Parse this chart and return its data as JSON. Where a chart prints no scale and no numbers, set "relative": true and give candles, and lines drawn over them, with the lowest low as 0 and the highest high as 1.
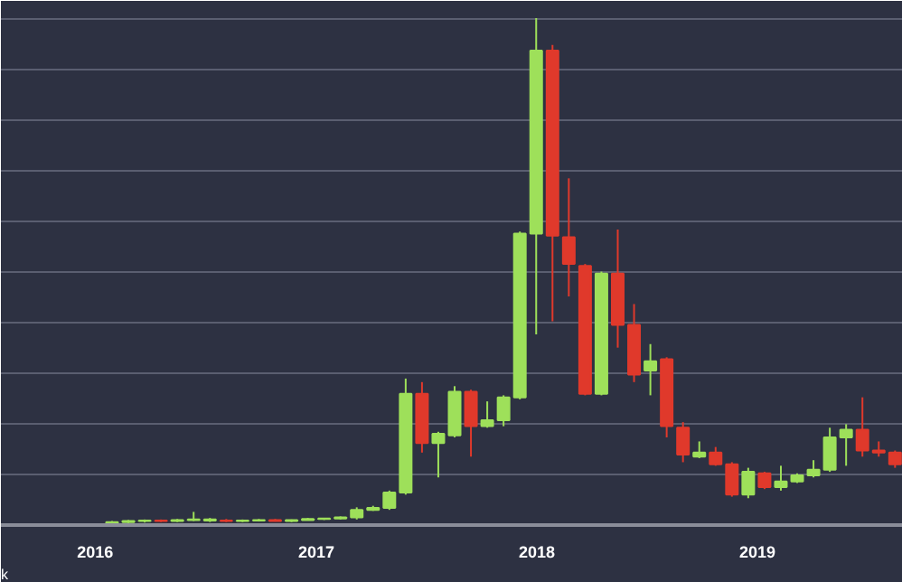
{
  "chart_data": {
    "type": "candlestick",
    "relative": true,
    "grid": "y",
    "tick_labels": "x",
    "x": [
      "2016-01-29",
      "2016-02-25",
      "2016-03-23",
      "2016-04-19",
      "2016-05-16",
      "2016-06-12",
      "2016-07-09",
      "2016-08-05",
      "2016-09-01",
      "2016-09-28",
      "2016-10-25",
      "2016-11-21",
      "2016-12-18",
      "2017-01-14",
      "2017-02-10",
      "2017-03-09",
      "2017-04-05",
      "2017-05-02",
      "2017-05-29",
      "2017-06-25",
      "2017-07-22",
      "2017-08-18",
      "2017-09-14",
      "2017-10-11",
      "2017-11-07",
      "2017-12-04",
      "2017-12-31",
      "2018-01-27",
      "2018-02-23",
      "2018-03-22",
      "2018-04-18",
      "2018-05-15",
      "2018-06-11",
      "2018-07-08",
      "2018-08-04",
      "2018-08-31",
      "2018-09-27",
      "2018-10-24",
      "2018-11-20",
      "2018-12-17",
      "2019-01-13",
      "2019-02-09",
      "2019-03-08",
      "2019-04-04",
      "2019-05-01",
      "2019-05-28",
      "2019-06-24",
      "2019-07-21",
      "2019-08-17"
    ],
    "ohlc": [
      [
        0.004,
        0.008,
        0,
        0.006
      ],
      [
        0.006,
        0.01,
        0.004,
        0.008
      ],
      [
        0.008,
        0.011,
        0.005,
        0.009
      ],
      [
        0.009,
        0.011,
        0.006,
        0.008
      ],
      [
        0.008,
        0.012,
        0.006,
        0.01
      ],
      [
        0.01,
        0.026,
        0.008,
        0.011
      ],
      [
        0.011,
        0.014,
        0.006,
        0.009
      ],
      [
        0.009,
        0.012,
        0.006,
        0.008
      ],
      [
        0.008,
        0.011,
        0.006,
        0.009
      ],
      [
        0.009,
        0.012,
        0.007,
        0.01
      ],
      [
        0.01,
        0.012,
        0.007,
        0.008
      ],
      [
        0.008,
        0.011,
        0.006,
        0.01
      ],
      [
        0.01,
        0.014,
        0.009,
        0.012
      ],
      [
        0.012,
        0.014,
        0.01,
        0.013
      ],
      [
        0.013,
        0.017,
        0.011,
        0.015
      ],
      [
        0.015,
        0.035,
        0.011,
        0.03
      ],
      [
        0.03,
        0.038,
        0.028,
        0.034
      ],
      [
        0.034,
        0.068,
        0.03,
        0.064
      ],
      [
        0.064,
        0.289,
        0.06,
        0.259
      ],
      [
        0.259,
        0.282,
        0.143,
        0.162
      ],
      [
        0.162,
        0.184,
        0.094,
        0.18
      ],
      [
        0.177,
        0.274,
        0.173,
        0.263
      ],
      [
        0.263,
        0.267,
        0.135,
        0.195
      ],
      [
        0.195,
        0.244,
        0.192,
        0.207
      ],
      [
        0.207,
        0.256,
        0.195,
        0.252
      ],
      [
        0.252,
        0.579,
        0.248,
        0.575
      ],
      [
        0.575,
        1,
        0.376,
        0.936
      ],
      [
        0.936,
        0.947,
        0.402,
        0.571
      ],
      [
        0.568,
        0.684,
        0.451,
        0.515
      ],
      [
        0.511,
        0.515,
        0.256,
        0.259
      ],
      [
        0.259,
        0.5,
        0.256,
        0.496
      ],
      [
        0.496,
        0.583,
        0.35,
        0.395
      ],
      [
        0.395,
        0.436,
        0.282,
        0.297
      ],
      [
        0.305,
        0.357,
        0.256,
        0.323
      ],
      [
        0.327,
        0.331,
        0.173,
        0.195
      ],
      [
        0.192,
        0.203,
        0.124,
        0.139
      ],
      [
        0.135,
        0.165,
        0.132,
        0.143
      ],
      [
        0.143,
        0.154,
        0.117,
        0.12
      ],
      [
        0.12,
        0.124,
        0.056,
        0.06
      ],
      [
        0.06,
        0.113,
        0.053,
        0.105
      ],
      [
        0.102,
        0.105,
        0.071,
        0.075
      ],
      [
        0.075,
        0.117,
        0.068,
        0.086
      ],
      [
        0.086,
        0.102,
        0.083,
        0.098
      ],
      [
        0.098,
        0.128,
        0.094,
        0.109
      ],
      [
        0.109,
        0.192,
        0.105,
        0.173
      ],
      [
        0.173,
        0.199,
        0.117,
        0.188
      ],
      [
        0.188,
        0.252,
        0.135,
        0.147
      ],
      [
        0.147,
        0.165,
        0.135,
        0.143
      ],
      [
        0.143,
        0.147,
        0.113,
        0.12
      ]
    ],
    "colors": [
      "#9ee05a",
      "#9ee05a",
      "#9ee05a",
      "#e0392b",
      "#9ee05a",
      "#9ee05a",
      "#9ee05a",
      "#e0392b",
      "#9ee05a",
      "#9ee05a",
      "#e0392b",
      "#9ee05a",
      "#9ee05a",
      "#9ee05a",
      "#9ee05a",
      "#9ee05a",
      "#9ee05a",
      "#9ee05a",
      "#9ee05a",
      "#e0392b",
      "#9ee05a",
      "#9ee05a",
      "#e0392b",
      "#9ee05a",
      "#9ee05a",
      "#9ee05a",
      "#9ee05a",
      "#e0392b",
      "#e0392b",
      "#e0392b",
      "#9ee05a",
      "#e0392b",
      "#e0392b",
      "#9ee05a",
      "#e0392b",
      "#e0392b",
      "#9ee05a",
      "#e0392b",
      "#e0392b",
      "#9ee05a",
      "#e0392b",
      "#9ee05a",
      "#9ee05a",
      "#9ee05a",
      "#9ee05a",
      "#9ee05a",
      "#e0392b",
      "#e0392b",
      "#e0392b"
    ],
    "xlim": [
      "2015-07-29",
      "2019-08-30"
    ],
    "xticks": [
      {
        "value": "2016",
        "label": "2016"
      },
      {
        "value": "2017",
        "label": "2017"
      },
      {
        "value": "2018",
        "label": "2018"
      },
      {
        "value": "2019",
        "label": "2019"
      }
    ],
    "annotations": [
      "k"
    ]
  }
}
